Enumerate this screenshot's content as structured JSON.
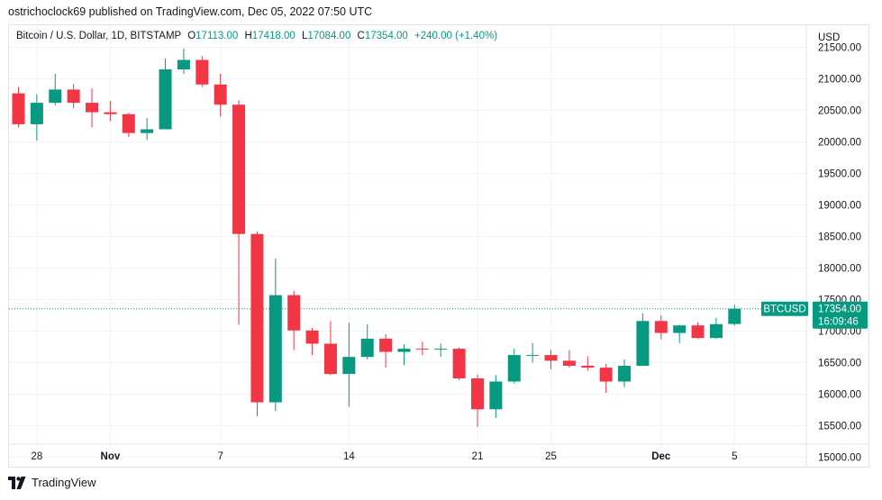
{
  "header": {
    "publisher_line": "ostrichoclock69 published on TradingView.com, Dec 05, 2022 07:50 UTC"
  },
  "legend": {
    "symbol": "Bitcoin / U.S. Dollar, 1D, BITSTAMP",
    "o_label": "O",
    "o_value": "17113.00",
    "h_label": "H",
    "h_value": "17418.00",
    "l_label": "L",
    "l_value": "17084.00",
    "c_label": "C",
    "c_value": "17354.00",
    "change": "+240.00 (+1.40%)"
  },
  "footer": {
    "brand": "TradingView"
  },
  "colors": {
    "up": "#089981",
    "down": "#f23645",
    "grid": "#f0f3fa",
    "text": "#131722"
  },
  "chart_data": {
    "type": "candlestick",
    "currency_label": "USD",
    "ylim": [
      14850,
      21850
    ],
    "y_ticks": [
      "15000.00",
      "15500.00",
      "16000.00",
      "16500.00",
      "17000.00",
      "17500.00",
      "18000.00",
      "18500.00",
      "19000.00",
      "19500.00",
      "20000.00",
      "20500.00",
      "21000.00",
      "21500.00"
    ],
    "x_tick_labels": [
      {
        "label": "28",
        "index": 1
      },
      {
        "label": "Nov",
        "index": 5
      },
      {
        "label": "7",
        "index": 11
      },
      {
        "label": "14",
        "index": 18
      },
      {
        "label": "21",
        "index": 25
      },
      {
        "label": "25",
        "index": 29
      },
      {
        "label": "Dec",
        "index": 35
      },
      {
        "label": "5",
        "index": 39
      }
    ],
    "last_price": 17354,
    "price_label": {
      "symbol": "BTCUSD",
      "price": "17354.00",
      "countdown": "16:09:46"
    },
    "candles": [
      {
        "o": 20770,
        "h": 20870,
        "l": 20230,
        "c": 20280
      },
      {
        "o": 20280,
        "h": 20760,
        "l": 20020,
        "c": 20620
      },
      {
        "o": 20620,
        "h": 21080,
        "l": 20580,
        "c": 20830
      },
      {
        "o": 20830,
        "h": 20920,
        "l": 20530,
        "c": 20620
      },
      {
        "o": 20620,
        "h": 20850,
        "l": 20230,
        "c": 20470
      },
      {
        "o": 20470,
        "h": 20650,
        "l": 20330,
        "c": 20440
      },
      {
        "o": 20440,
        "h": 20460,
        "l": 20080,
        "c": 20140
      },
      {
        "o": 20140,
        "h": 20380,
        "l": 20030,
        "c": 20200
      },
      {
        "o": 20200,
        "h": 21320,
        "l": 20200,
        "c": 21150
      },
      {
        "o": 21150,
        "h": 21480,
        "l": 21080,
        "c": 21300
      },
      {
        "o": 21300,
        "h": 21360,
        "l": 20870,
        "c": 20910
      },
      {
        "o": 20910,
        "h": 21080,
        "l": 20400,
        "c": 20590
      },
      {
        "o": 20590,
        "h": 20660,
        "l": 17100,
        "c": 18540
      },
      {
        "o": 18540,
        "h": 18580,
        "l": 15650,
        "c": 15870
      },
      {
        "o": 15870,
        "h": 18150,
        "l": 15730,
        "c": 17570
      },
      {
        "o": 17570,
        "h": 17640,
        "l": 16700,
        "c": 17010
      },
      {
        "o": 17010,
        "h": 17050,
        "l": 16620,
        "c": 16800
      },
      {
        "o": 16800,
        "h": 17160,
        "l": 16300,
        "c": 16320
      },
      {
        "o": 16320,
        "h": 17130,
        "l": 15800,
        "c": 16590
      },
      {
        "o": 16590,
        "h": 17110,
        "l": 16550,
        "c": 16880
      },
      {
        "o": 16880,
        "h": 16950,
        "l": 16420,
        "c": 16670
      },
      {
        "o": 16670,
        "h": 16790,
        "l": 16460,
        "c": 16720
      },
      {
        "o": 16720,
        "h": 16830,
        "l": 16620,
        "c": 16710
      },
      {
        "o": 16710,
        "h": 16800,
        "l": 16590,
        "c": 16720
      },
      {
        "o": 16720,
        "h": 16740,
        "l": 16220,
        "c": 16250
      },
      {
        "o": 16250,
        "h": 16310,
        "l": 15480,
        "c": 15760
      },
      {
        "o": 15760,
        "h": 16300,
        "l": 15620,
        "c": 16200
      },
      {
        "o": 16200,
        "h": 16720,
        "l": 16170,
        "c": 16620
      },
      {
        "o": 16620,
        "h": 16810,
        "l": 16500,
        "c": 16620
      },
      {
        "o": 16620,
        "h": 16700,
        "l": 16390,
        "c": 16530
      },
      {
        "o": 16530,
        "h": 16700,
        "l": 16420,
        "c": 16450
      },
      {
        "o": 16450,
        "h": 16600,
        "l": 16370,
        "c": 16420
      },
      {
        "o": 16420,
        "h": 16480,
        "l": 16020,
        "c": 16200
      },
      {
        "o": 16200,
        "h": 16550,
        "l": 16110,
        "c": 16450
      },
      {
        "o": 16450,
        "h": 17280,
        "l": 16450,
        "c": 17160
      },
      {
        "o": 17160,
        "h": 17250,
        "l": 16870,
        "c": 16970
      },
      {
        "o": 16970,
        "h": 17100,
        "l": 16810,
        "c": 17090
      },
      {
        "o": 17090,
        "h": 17140,
        "l": 16880,
        "c": 16890
      },
      {
        "o": 16890,
        "h": 17210,
        "l": 16880,
        "c": 17110
      },
      {
        "o": 17113,
        "h": 17418,
        "l": 17084,
        "c": 17354
      }
    ]
  }
}
